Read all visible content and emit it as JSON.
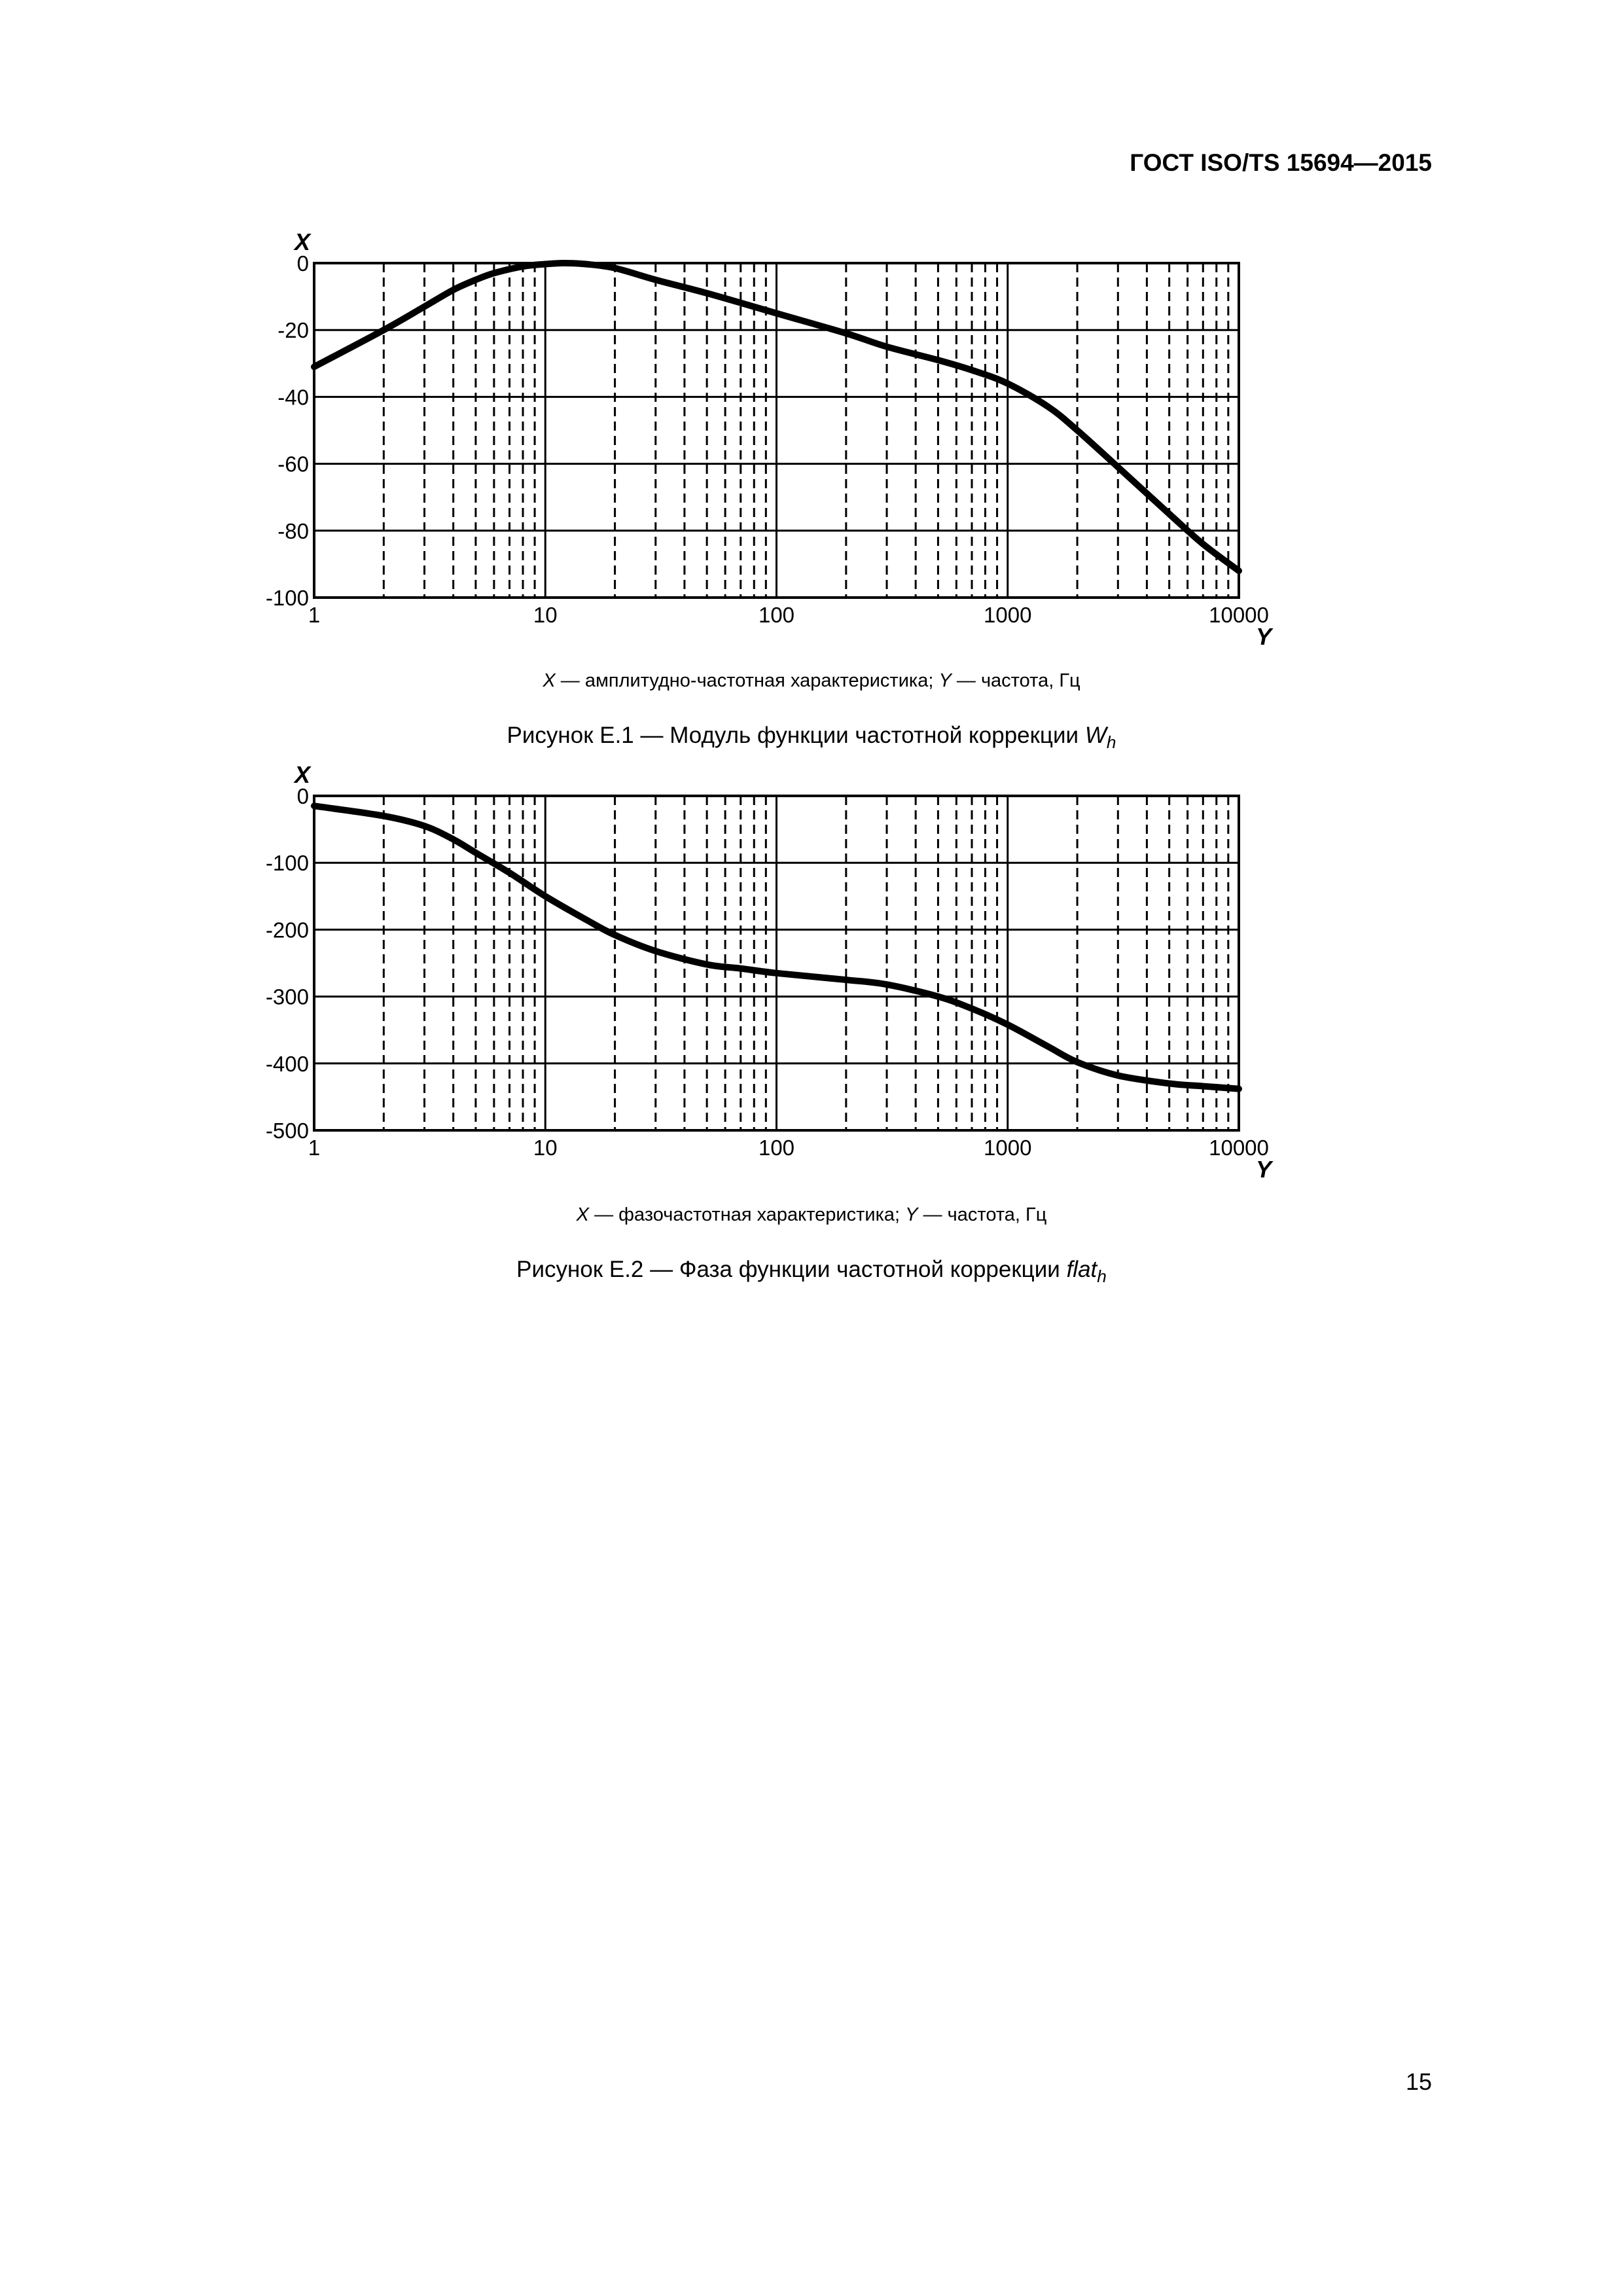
{
  "header": {
    "doc_id": "ГОСТ ISO/TS 15694—2015"
  },
  "page_number": "15",
  "figures": [
    {
      "legend": {
        "x_sym": "X",
        "x_text": " — амплитудно-частотная характеристика; ",
        "y_sym": "Y",
        "y_text": " — частота, Гц"
      },
      "caption": {
        "prefix": "Рисунок Е.1 — Модуль функции частотной коррекции ",
        "symbol": "W",
        "subscript": "h"
      }
    },
    {
      "legend": {
        "x_sym": "X",
        "x_text": " — фазочастотная характеристика; ",
        "y_sym": "Y",
        "y_text": " — частота, Гц"
      },
      "caption": {
        "prefix": "Рисунок Е.2 — Фаза функции частотной коррекции ",
        "symbol": "flat",
        "subscript": "h"
      }
    }
  ],
  "chart_data": [
    {
      "type": "line",
      "xscale": "log",
      "xlim": [
        1,
        10000
      ],
      "ylim": [
        -100,
        0
      ],
      "xlabel": "Y",
      "ylabel": "X",
      "xticks": [
        "1",
        "10",
        "100",
        "1000",
        "10000"
      ],
      "yticks": [
        "0",
        "-20",
        "-40",
        "-60",
        "-80",
        "-100"
      ],
      "grid": true,
      "line_color": "#000000",
      "series": [
        {
          "x": [
            1,
            2,
            3,
            4,
            5,
            6,
            8,
            10,
            12,
            15,
            20,
            30,
            50,
            100,
            200,
            300,
            500,
            700,
            1000,
            1500,
            2000,
            3000,
            5000,
            7000,
            10000
          ],
          "y": [
            -31,
            -20,
            -13,
            -8,
            -5,
            -3,
            -1,
            -0.3,
            0,
            -0.3,
            -1.5,
            -5,
            -9,
            -15,
            -21,
            -25,
            -29,
            -32,
            -36,
            -43,
            -50,
            -61,
            -75,
            -84,
            -92
          ]
        }
      ]
    },
    {
      "type": "line",
      "xscale": "log",
      "xlim": [
        1,
        10000
      ],
      "ylim": [
        -500,
        0
      ],
      "xlabel": "Y",
      "ylabel": "X",
      "xticks": [
        "1",
        "10",
        "100",
        "1000",
        "10000"
      ],
      "yticks": [
        "0",
        "-100",
        "-200",
        "-300",
        "-400",
        "-500"
      ],
      "grid": true,
      "line_color": "#000000",
      "series": [
        {
          "x": [
            1,
            2,
            3,
            4,
            5,
            7,
            10,
            15,
            20,
            30,
            50,
            70,
            100,
            200,
            300,
            500,
            700,
            1000,
            1500,
            2000,
            3000,
            5000,
            7000,
            10000
          ],
          "y": [
            -15,
            -30,
            -45,
            -65,
            -85,
            -115,
            -150,
            -185,
            -208,
            -232,
            -252,
            -258,
            -265,
            -275,
            -282,
            -300,
            -318,
            -342,
            -375,
            -398,
            -418,
            -430,
            -434,
            -438
          ]
        }
      ]
    }
  ]
}
